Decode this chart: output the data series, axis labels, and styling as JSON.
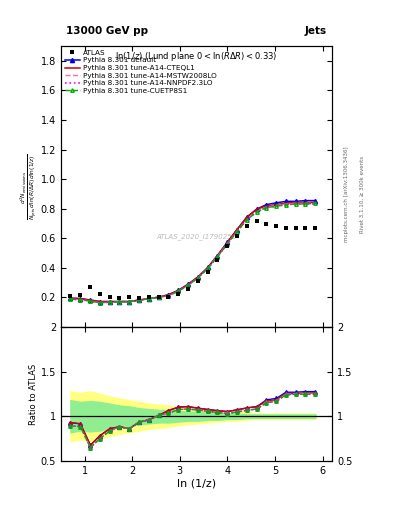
{
  "title_left": "13000 GeV pp",
  "title_right": "Jets",
  "subplot_title": "ln(1/z)  (Lund plane 0<ln(R/Δ R)<0.33)",
  "watermark": "ATLAS_2020_I1790256",
  "ylabel_ratio": "Ratio to ATLAS",
  "xlabel": "ln (1/z)",
  "right_label": "Rivet 3.1.10, ≥ 300k events",
  "arxiv_label": "[arXiv:1306.3436]",
  "mcplots_label": "mcplots.cern.ch",
  "x_main": [
    0.7,
    0.91,
    1.12,
    1.32,
    1.53,
    1.73,
    1.94,
    2.14,
    2.35,
    2.56,
    2.76,
    2.97,
    3.17,
    3.38,
    3.59,
    3.79,
    4.0,
    4.2,
    4.41,
    4.62,
    4.82,
    5.03,
    5.23,
    5.44,
    5.64,
    5.85
  ],
  "atlas_y": [
    0.21,
    0.215,
    0.27,
    0.22,
    0.2,
    0.195,
    0.2,
    0.195,
    0.2,
    0.2,
    0.205,
    0.225,
    0.26,
    0.31,
    0.375,
    0.455,
    0.545,
    0.615,
    0.68,
    0.72,
    0.7,
    0.68,
    0.67,
    0.67,
    0.67,
    0.67
  ],
  "pythia_default_y": [
    0.195,
    0.192,
    0.182,
    0.172,
    0.172,
    0.172,
    0.172,
    0.182,
    0.192,
    0.202,
    0.218,
    0.248,
    0.288,
    0.338,
    0.403,
    0.483,
    0.573,
    0.658,
    0.743,
    0.798,
    0.828,
    0.84,
    0.85,
    0.85,
    0.855,
    0.855
  ],
  "pythia_cteql1_y": [
    0.195,
    0.192,
    0.182,
    0.172,
    0.172,
    0.172,
    0.172,
    0.182,
    0.192,
    0.202,
    0.218,
    0.248,
    0.288,
    0.338,
    0.403,
    0.483,
    0.573,
    0.658,
    0.743,
    0.798,
    0.818,
    0.828,
    0.838,
    0.843,
    0.843,
    0.843
  ],
  "pythia_mstw_y": [
    0.188,
    0.185,
    0.175,
    0.165,
    0.167,
    0.172,
    0.172,
    0.182,
    0.192,
    0.202,
    0.212,
    0.242,
    0.282,
    0.332,
    0.397,
    0.477,
    0.565,
    0.648,
    0.728,
    0.782,
    0.812,
    0.822,
    0.832,
    0.837,
    0.837,
    0.837
  ],
  "pythia_nnpdf_y": [
    0.188,
    0.185,
    0.175,
    0.165,
    0.167,
    0.172,
    0.172,
    0.182,
    0.192,
    0.202,
    0.212,
    0.242,
    0.282,
    0.332,
    0.397,
    0.475,
    0.562,
    0.645,
    0.725,
    0.78,
    0.807,
    0.817,
    0.827,
    0.832,
    0.832,
    0.832
  ],
  "pythia_cuetp_y": [
    0.188,
    0.185,
    0.175,
    0.165,
    0.167,
    0.172,
    0.172,
    0.182,
    0.192,
    0.202,
    0.212,
    0.242,
    0.282,
    0.332,
    0.397,
    0.475,
    0.562,
    0.645,
    0.725,
    0.78,
    0.807,
    0.817,
    0.827,
    0.832,
    0.832,
    0.837
  ],
  "ratio_x": [
    0.7,
    0.91,
    1.12,
    1.32,
    1.53,
    1.73,
    1.94,
    2.14,
    2.35,
    2.56,
    2.76,
    2.97,
    3.17,
    3.38,
    3.59,
    3.79,
    4.0,
    4.2,
    4.41,
    4.62,
    4.82,
    5.03,
    5.23,
    5.44,
    5.64,
    5.85
  ],
  "ratio_atlas_err_yellow_lo": [
    0.72,
    0.74,
    0.72,
    0.75,
    0.78,
    0.8,
    0.82,
    0.84,
    0.86,
    0.87,
    0.88,
    0.9,
    0.91,
    0.92,
    0.93,
    0.94,
    0.95,
    0.95,
    0.96,
    0.97,
    0.97,
    0.97,
    0.97,
    0.97,
    0.97,
    0.97
  ],
  "ratio_atlas_err_yellow_hi": [
    1.28,
    1.26,
    1.28,
    1.25,
    1.22,
    1.2,
    1.18,
    1.16,
    1.14,
    1.13,
    1.12,
    1.1,
    1.09,
    1.08,
    1.07,
    1.06,
    1.05,
    1.05,
    1.04,
    1.03,
    1.03,
    1.03,
    1.03,
    1.03,
    1.03,
    1.03
  ],
  "ratio_atlas_err_green_lo": [
    0.82,
    0.84,
    0.83,
    0.84,
    0.86,
    0.88,
    0.89,
    0.91,
    0.92,
    0.93,
    0.93,
    0.94,
    0.95,
    0.95,
    0.96,
    0.96,
    0.97,
    0.97,
    0.98,
    0.98,
    0.98,
    0.98,
    0.98,
    0.98,
    0.98,
    0.98
  ],
  "ratio_atlas_err_green_hi": [
    1.18,
    1.16,
    1.17,
    1.16,
    1.14,
    1.12,
    1.11,
    1.09,
    1.08,
    1.07,
    1.07,
    1.06,
    1.05,
    1.05,
    1.04,
    1.04,
    1.03,
    1.03,
    1.02,
    1.02,
    1.02,
    1.02,
    1.02,
    1.02,
    1.02,
    1.02
  ],
  "ratio_default": [
    0.929,
    0.914,
    0.674,
    0.782,
    0.86,
    0.882,
    0.86,
    0.933,
    0.96,
    1.01,
    1.063,
    1.102,
    1.108,
    1.09,
    1.075,
    1.062,
    1.052,
    1.071,
    1.093,
    1.108,
    1.183,
    1.2,
    1.269,
    1.269,
    1.276,
    1.276
  ],
  "ratio_cteql1": [
    0.929,
    0.914,
    0.674,
    0.782,
    0.86,
    0.882,
    0.86,
    0.933,
    0.96,
    1.01,
    1.063,
    1.102,
    1.108,
    1.09,
    1.075,
    1.062,
    1.052,
    1.071,
    1.093,
    1.108,
    1.168,
    1.185,
    1.254,
    1.254,
    1.261,
    1.261
  ],
  "ratio_mstw": [
    0.895,
    0.881,
    0.648,
    0.75,
    0.835,
    0.882,
    0.86,
    0.933,
    0.96,
    1.01,
    1.034,
    1.074,
    1.082,
    1.068,
    1.055,
    1.044,
    1.034,
    1.05,
    1.068,
    1.085,
    1.157,
    1.174,
    1.246,
    1.254,
    1.254,
    1.254
  ],
  "ratio_nnpdf": [
    0.895,
    0.881,
    0.648,
    0.75,
    0.835,
    0.882,
    0.86,
    0.933,
    0.96,
    1.01,
    1.034,
    1.074,
    1.082,
    1.068,
    1.055,
    1.042,
    1.03,
    1.047,
    1.065,
    1.081,
    1.15,
    1.167,
    1.239,
    1.246,
    1.246,
    1.246
  ],
  "ratio_cuetp": [
    0.895,
    0.881,
    0.648,
    0.75,
    0.835,
    0.882,
    0.86,
    0.933,
    0.96,
    1.01,
    1.034,
    1.074,
    1.082,
    1.068,
    1.055,
    1.042,
    1.03,
    1.047,
    1.065,
    1.081,
    1.15,
    1.167,
    1.239,
    1.246,
    1.246,
    1.254
  ],
  "color_default": "#0000EE",
  "color_cteql1": "#CC0000",
  "color_mstw": "#FF69B4",
  "color_nnpdf": "#FF00FF",
  "color_cuetp": "#00AA00",
  "ylim_main": [
    0.0,
    1.9
  ],
  "ylim_ratio": [
    0.5,
    2.0
  ],
  "xlim": [
    0.5,
    6.2
  ],
  "yticks_main": [
    0.2,
    0.4,
    0.6,
    0.8,
    1.0,
    1.2,
    1.4,
    1.6,
    1.8
  ],
  "yticks_ratio": [
    0.5,
    1.0,
    1.5,
    2.0
  ],
  "xticks": [
    1,
    2,
    3,
    4,
    5,
    6
  ]
}
